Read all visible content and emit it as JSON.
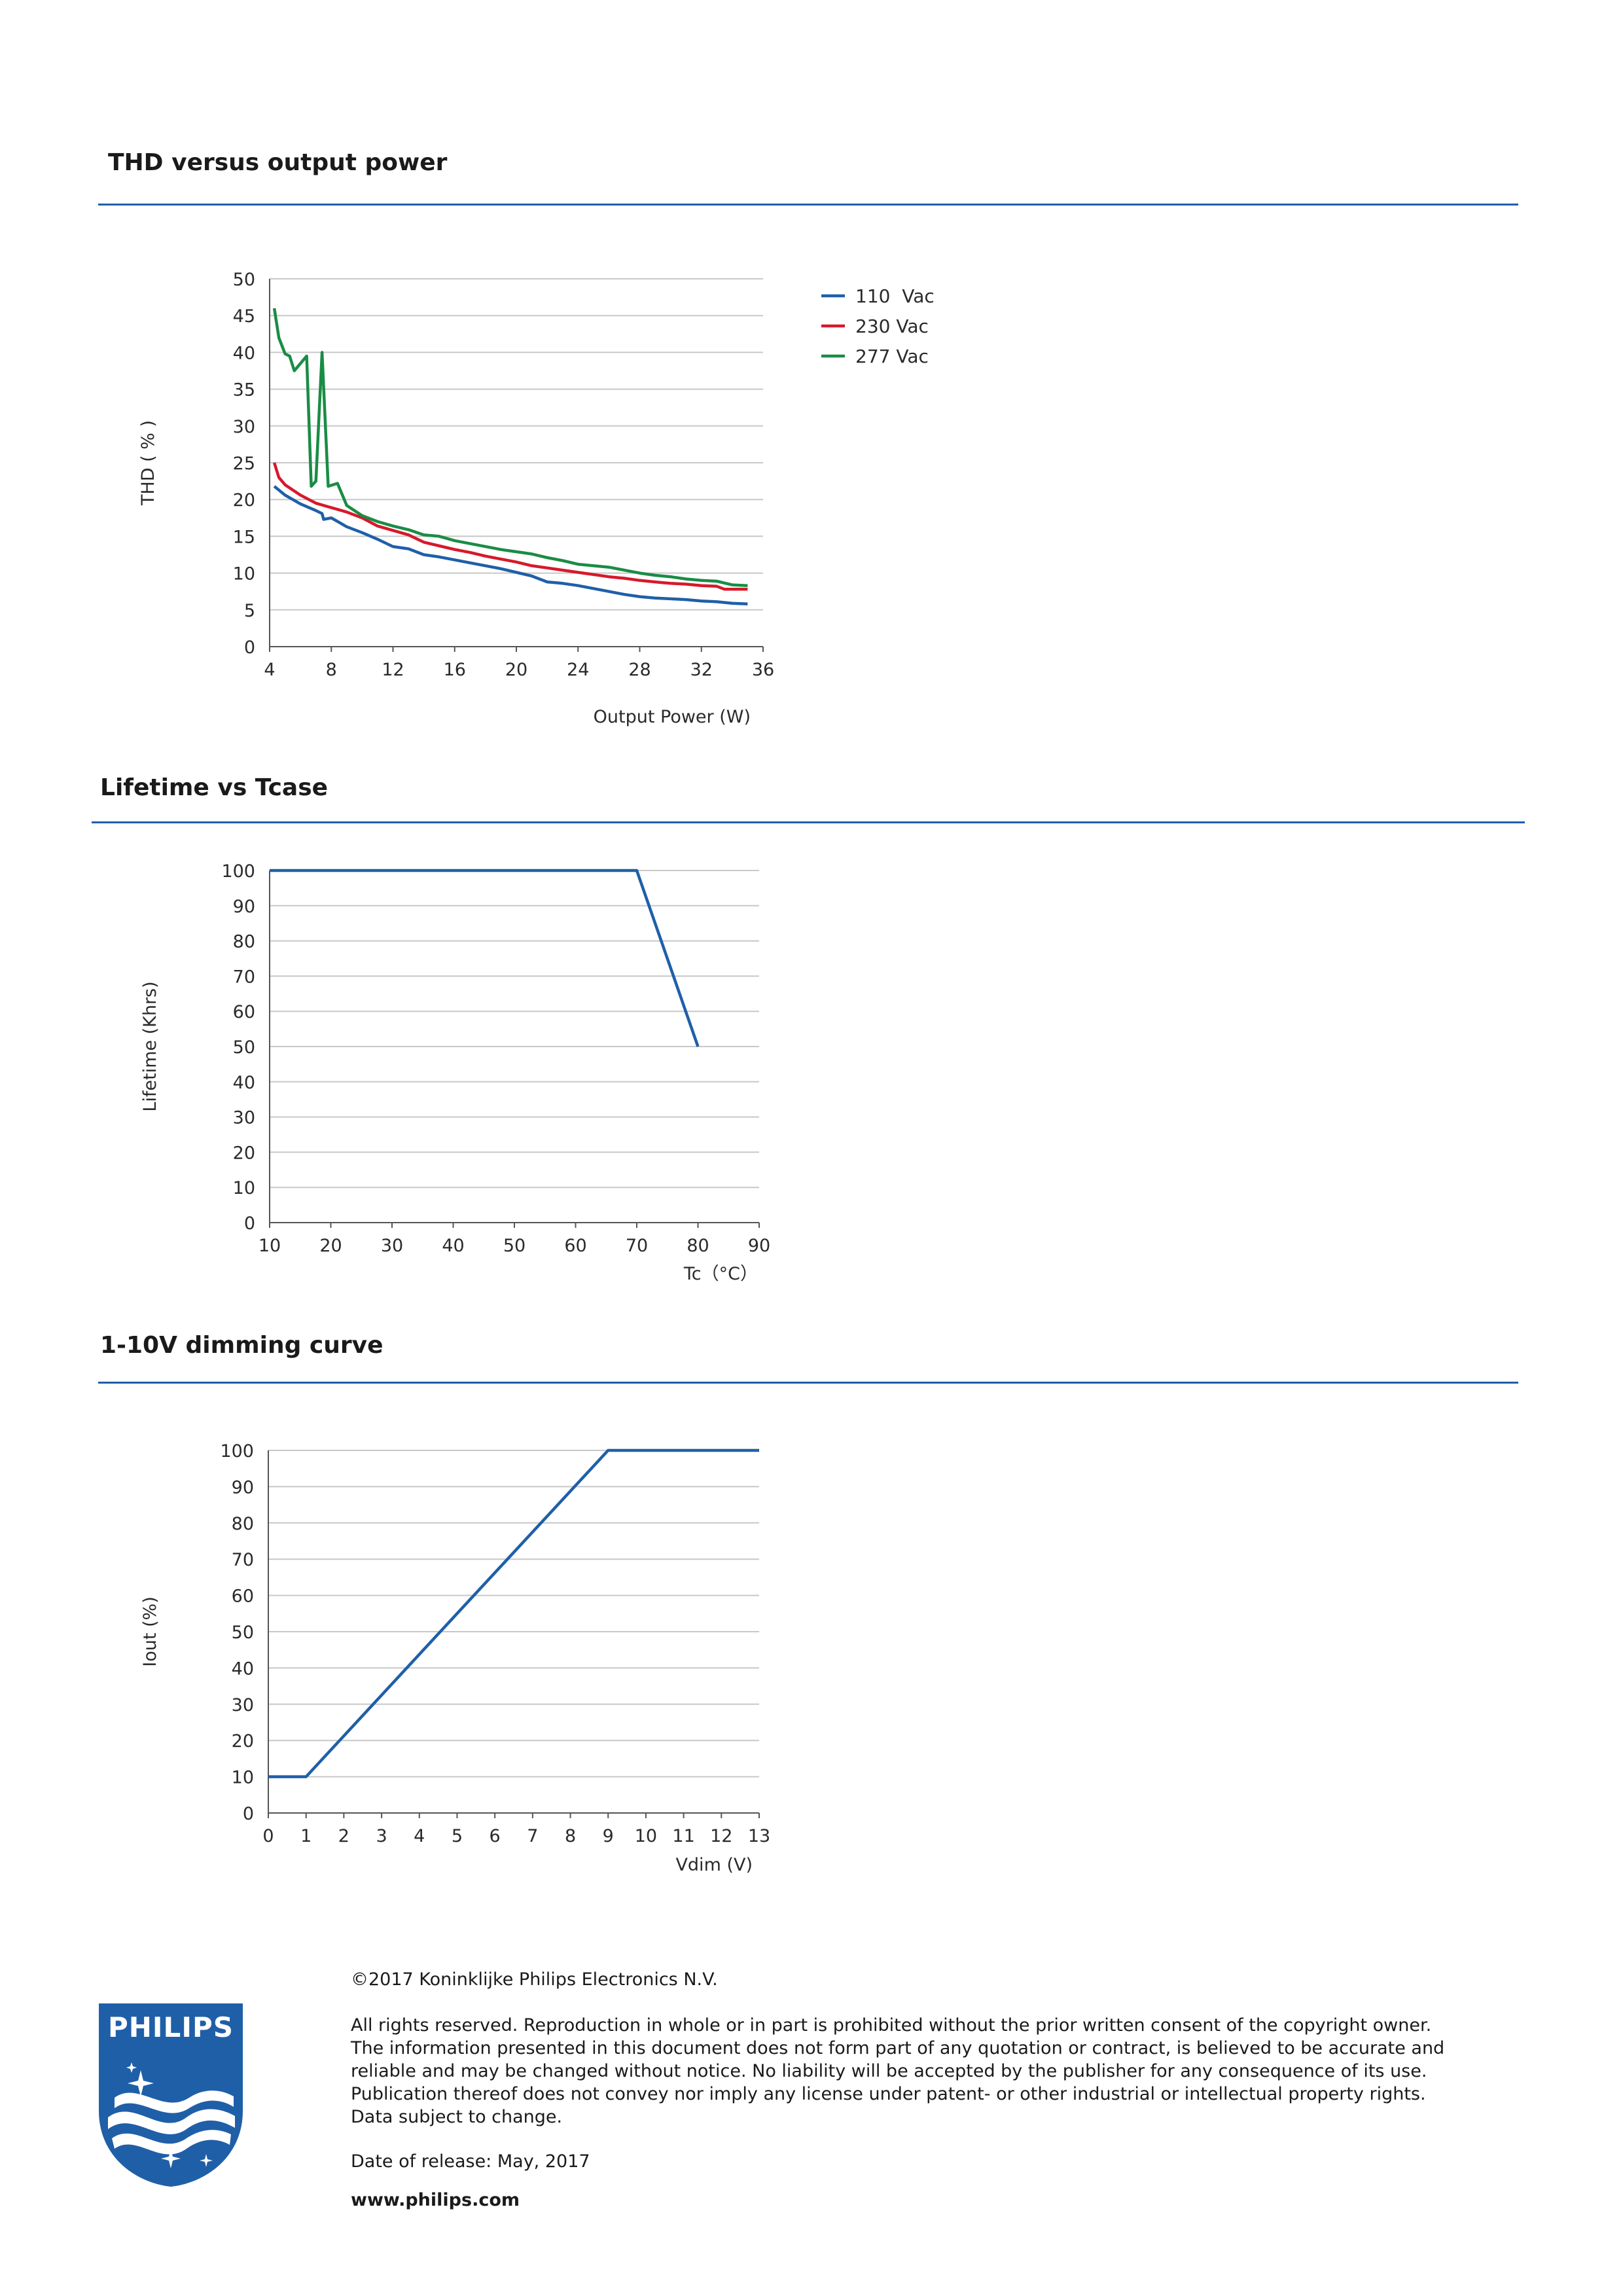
{
  "sections": {
    "thd_title": "THD versus output power",
    "lifetime_title": "Lifetime vs Tcase",
    "dimming_title": "1-10V dimming curve"
  },
  "colors": {
    "accent": "#1f5fa8",
    "series_110": "#1f5fa8",
    "series_230": "#d7192b",
    "series_277": "#1a8c45",
    "grid": "#c8c8c8"
  },
  "chart_data": [
    {
      "type": "line",
      "title": "THD versus output power",
      "xlabel": "Output Power (W)",
      "ylabel": "THD ( % )",
      "xlim": [
        4,
        36
      ],
      "ylim": [
        0,
        50
      ],
      "xticks": [
        4,
        8,
        12,
        16,
        20,
        24,
        28,
        32,
        36
      ],
      "yticks": [
        0,
        5,
        10,
        15,
        20,
        25,
        30,
        35,
        40,
        45,
        50
      ],
      "grid": "horizontal",
      "legend_position": "right",
      "series": [
        {
          "name": "110  Vac",
          "color": "#1f5fa8",
          "x": [
            4.3,
            5,
            6,
            7,
            7.4,
            7.5,
            8,
            9,
            10,
            11,
            12,
            13,
            14,
            15,
            16,
            17,
            18,
            19,
            20,
            21,
            22,
            23,
            24,
            25,
            26,
            27,
            28,
            29,
            30,
            31,
            32,
            33,
            34,
            35
          ],
          "y": [
            21.8,
            20.6,
            19.4,
            18.5,
            18.1,
            17.3,
            17.5,
            16.3,
            15.5,
            14.6,
            13.6,
            13.3,
            12.5,
            12.2,
            11.8,
            11.4,
            11.0,
            10.6,
            10.1,
            9.6,
            8.8,
            8.6,
            8.3,
            7.9,
            7.5,
            7.1,
            6.8,
            6.6,
            6.5,
            6.4,
            6.2,
            6.1,
            5.9,
            5.8
          ]
        },
        {
          "name": "230 Vac",
          "color": "#d7192b",
          "x": [
            4.3,
            4.6,
            5,
            6,
            7,
            8,
            9,
            10,
            11,
            12,
            13,
            14,
            15,
            16,
            17,
            18,
            19,
            20,
            21,
            22,
            23,
            24,
            25,
            26,
            27,
            28,
            29,
            30,
            31,
            32,
            33,
            33.5,
            34,
            35
          ],
          "y": [
            25.0,
            23.0,
            22.0,
            20.6,
            19.5,
            18.9,
            18.3,
            17.5,
            16.4,
            15.8,
            15.2,
            14.2,
            13.7,
            13.2,
            12.8,
            12.3,
            11.9,
            11.5,
            11.0,
            10.7,
            10.4,
            10.1,
            9.8,
            9.5,
            9.3,
            9.0,
            8.8,
            8.6,
            8.5,
            8.3,
            8.2,
            7.8,
            7.8,
            7.8
          ]
        },
        {
          "name": "277 Vac",
          "color": "#1a8c45",
          "x": [
            4.3,
            4.6,
            5,
            5.3,
            5.6,
            6,
            6.4,
            6.7,
            7,
            7.4,
            7.8,
            8.4,
            9,
            10,
            11,
            12,
            13,
            14,
            15,
            16,
            17,
            18,
            19,
            20,
            21,
            22,
            23,
            24,
            25,
            26,
            27,
            28,
            29,
            30,
            31,
            32,
            33,
            34,
            35
          ],
          "y": [
            46.0,
            42.0,
            39.8,
            39.5,
            37.5,
            38.5,
            39.5,
            21.8,
            22.5,
            40.0,
            21.8,
            22.2,
            19.2,
            17.8,
            17.0,
            16.4,
            15.9,
            15.2,
            15.0,
            14.4,
            14.0,
            13.6,
            13.2,
            12.9,
            12.6,
            12.1,
            11.7,
            11.2,
            11.0,
            10.8,
            10.4,
            10.0,
            9.7,
            9.5,
            9.2,
            9.0,
            8.9,
            8.4,
            8.3
          ]
        }
      ]
    },
    {
      "type": "line",
      "title": "Lifetime vs Tcase",
      "xlabel": "Tc（°C）",
      "ylabel": "Lifetime (Khrs)",
      "xlim": [
        10,
        90
      ],
      "ylim": [
        0,
        100
      ],
      "xticks": [
        10,
        20,
        30,
        40,
        50,
        60,
        70,
        80,
        90
      ],
      "yticks": [
        0,
        10,
        20,
        30,
        40,
        50,
        60,
        70,
        80,
        90,
        100
      ],
      "grid": "horizontal",
      "series": [
        {
          "color": "#1f5fa8",
          "x": [
            10,
            70,
            80
          ],
          "y": [
            100,
            100,
            50
          ]
        }
      ]
    },
    {
      "type": "line",
      "title": "1-10V dimming curve",
      "xlabel": "Vdim (V)",
      "ylabel": "Iout (%)",
      "xlim": [
        0,
        13
      ],
      "ylim": [
        0,
        100
      ],
      "xticks": [
        0,
        1,
        2,
        3,
        4,
        5,
        6,
        7,
        8,
        9,
        10,
        11,
        12,
        13
      ],
      "yticks": [
        0,
        10,
        20,
        30,
        40,
        50,
        60,
        70,
        80,
        90,
        100
      ],
      "grid": "horizontal",
      "series": [
        {
          "color": "#1f5fa8",
          "x": [
            0,
            1,
            9,
            13
          ],
          "y": [
            10,
            10,
            100,
            100
          ]
        }
      ]
    }
  ],
  "footer": {
    "copyright": "©2017 Koninklijke Philips Electronics N.V.",
    "disclaimer_lines": [
      "All rights reserved. Reproduction in whole or in part is prohibited without the prior written consent of the copyright owner.",
      "The information presented in this document does not form part of any quotation or contract, is believed to be accurate and",
      "reliable and may be changed without notice. No liability will be accepted by the publisher for any consequence of its use.",
      "Publication thereof does not convey nor imply any license under patent- or other industrial or intellectual property rights.",
      "Data subject to change."
    ],
    "release_date": "Date of release: May, 2017",
    "website": "www.philips.com"
  },
  "logo": {
    "brand": "PHILIPS",
    "color": "#1f5fa8"
  }
}
